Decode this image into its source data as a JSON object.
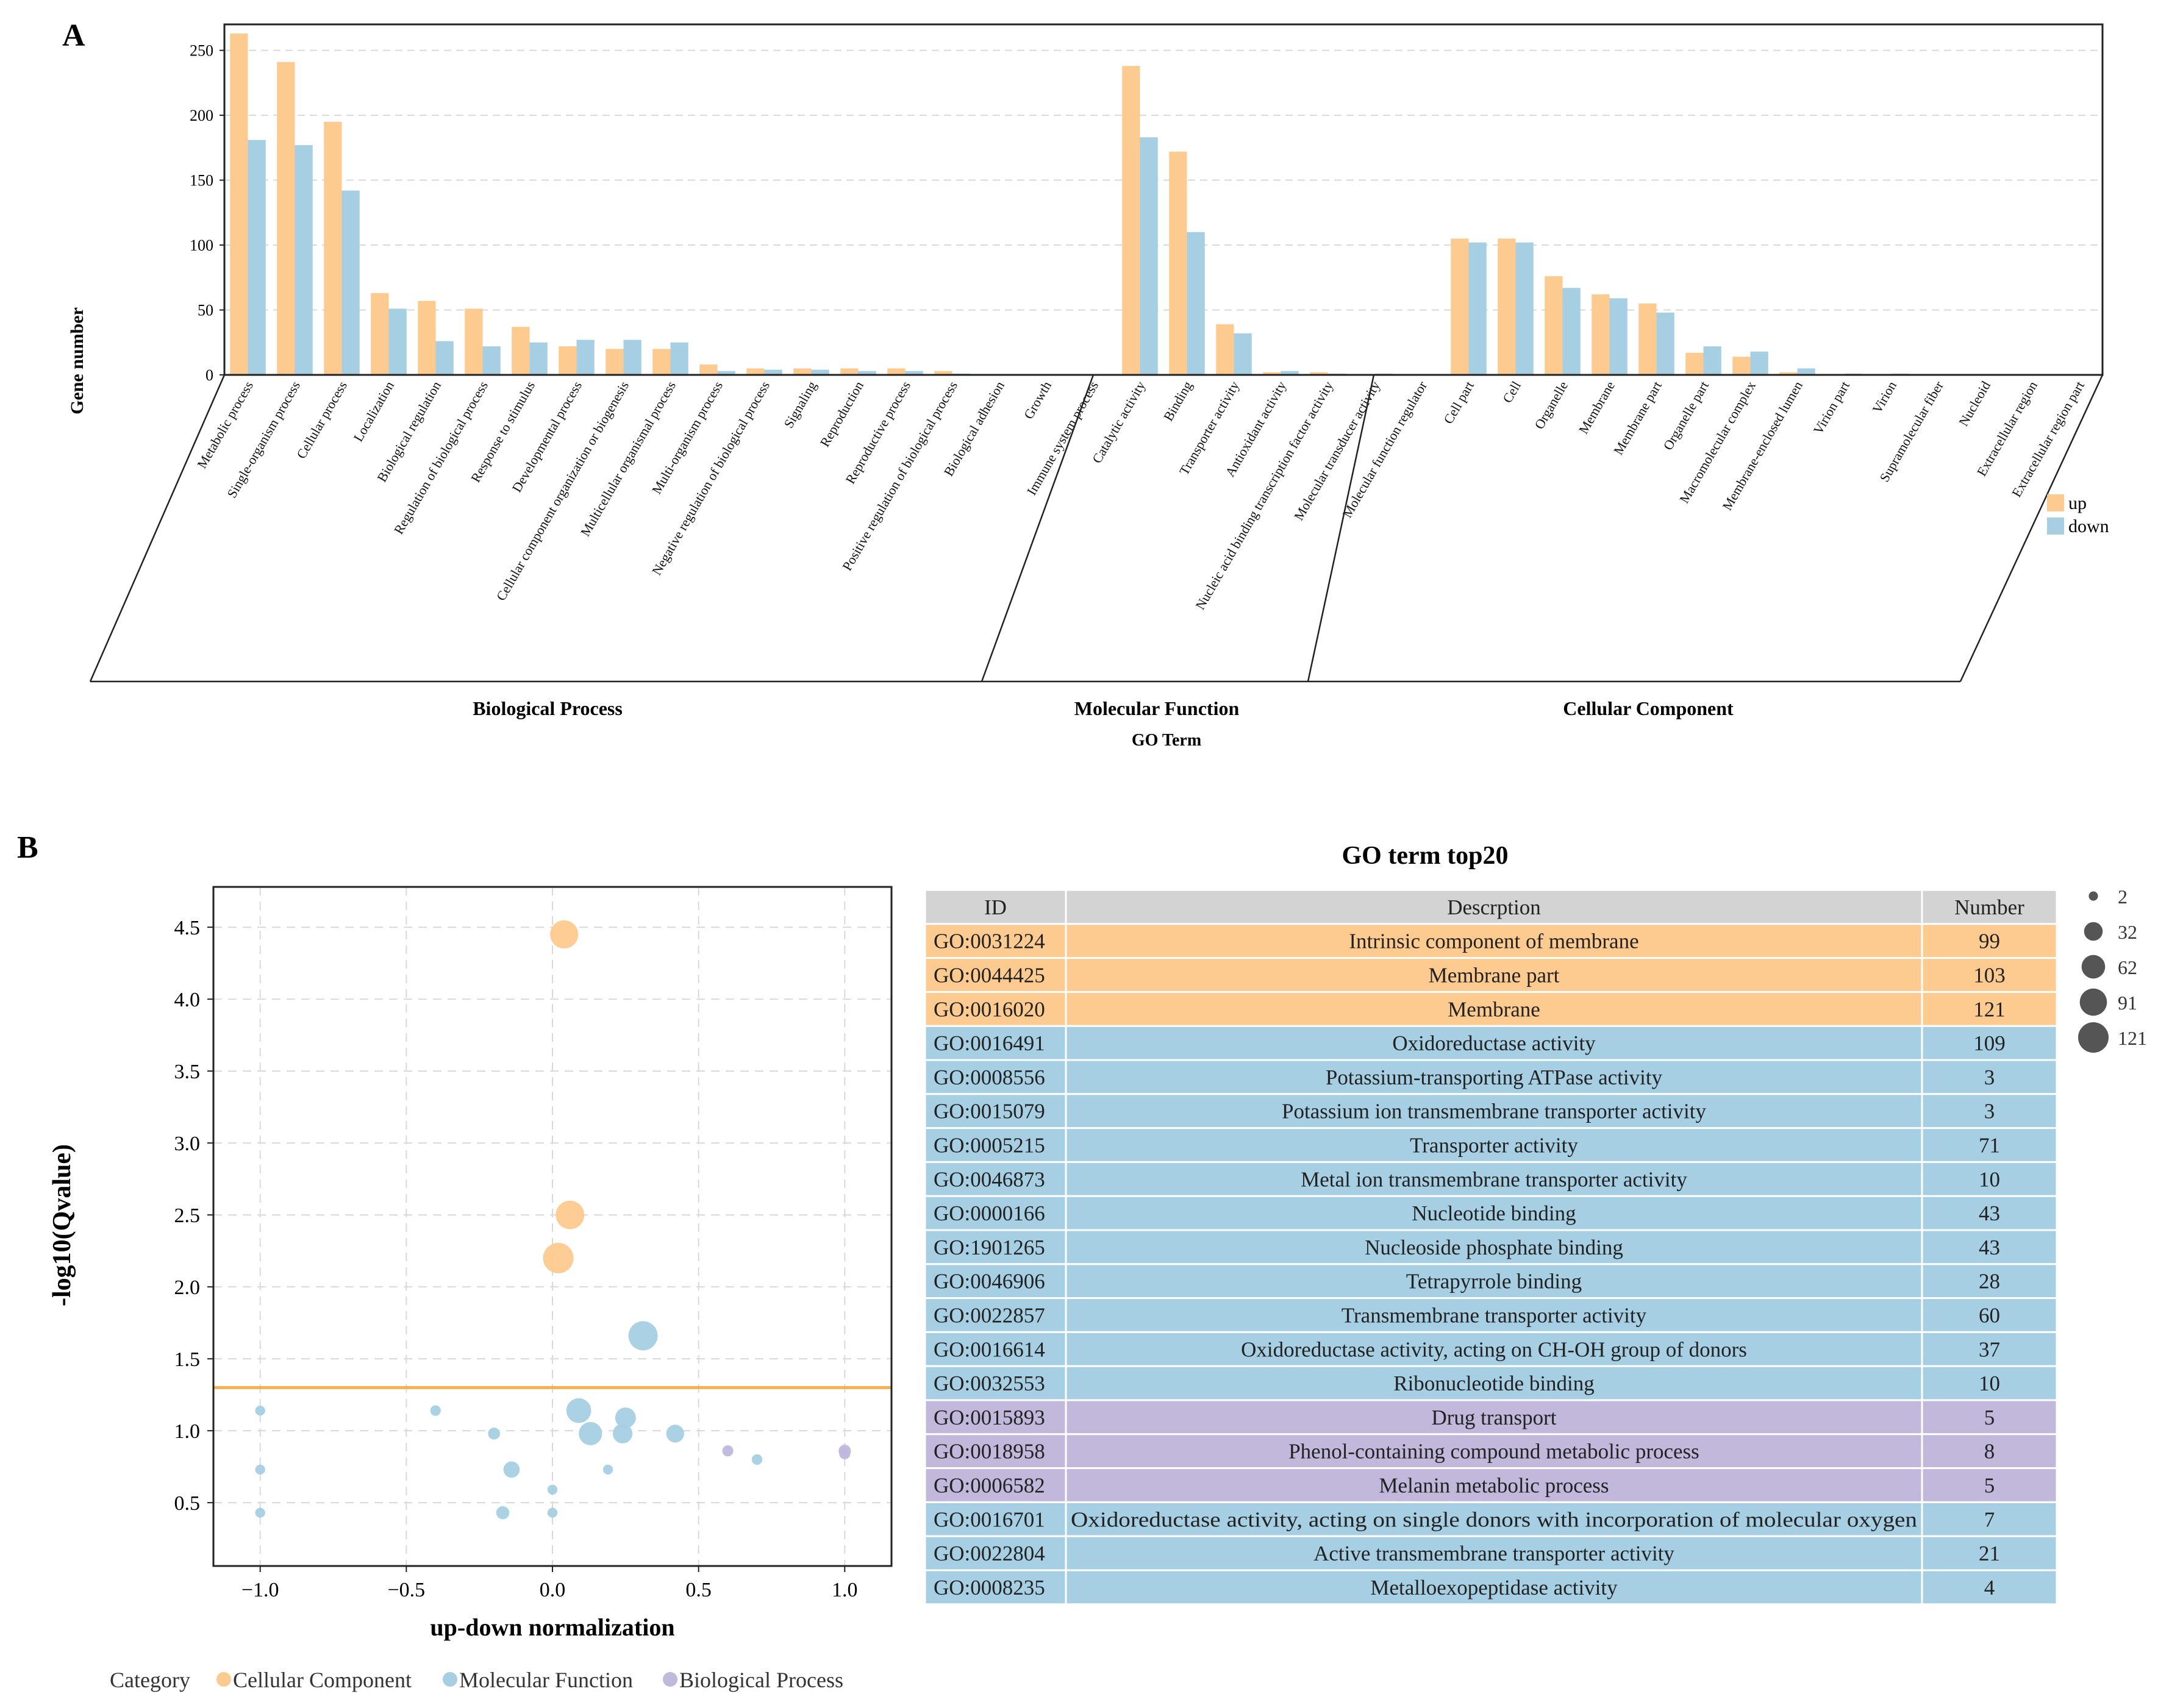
{
  "colors": {
    "up": "#fdca8f",
    "down": "#a7cfe3",
    "cellular_component": "#fdca8f",
    "molecular_function": "#a7cfe3",
    "biological_process": "#c1b8dc",
    "threshold_line": "#f7b04b",
    "header_row": "#d3d3d3",
    "grid": "#d9d9d9"
  },
  "chart_data": [
    {
      "panel": "A",
      "type": "bar",
      "xlabel": "GO Term",
      "ylabel": "Gene number",
      "ylim": [
        0,
        270
      ],
      "yticks": [
        0,
        50,
        100,
        150,
        200,
        250
      ],
      "grid": true,
      "legend": [
        {
          "name": "up",
          "color_key": "up"
        },
        {
          "name": "down",
          "color_key": "down"
        }
      ],
      "legend_placement": "right",
      "groups": [
        {
          "name": "Biological Process",
          "categories": [
            "Metabolic process",
            "Single-organism process",
            "Cellular process",
            "Localization",
            "Biological regulation",
            "Regulation of biological process",
            "Response to stimulus",
            "Developmental process",
            "Cellular component organization or biogenesis",
            "Multicellular organismal process",
            "Multi-organism process",
            "Negative regulation of biological process",
            "Signaling",
            "Reproduction",
            "Reproductive process",
            "Positive regulation of biological process",
            "Biological adhesion",
            "Growth",
            "Immune system process"
          ],
          "series": [
            {
              "name": "up",
              "values": [
                263,
                241,
                195,
                63,
                57,
                51,
                37,
                22,
                20,
                20,
                8,
                5,
                5,
                5,
                5,
                3,
                0.5,
                0.5,
                0.5
              ]
            },
            {
              "name": "down",
              "values": [
                181,
                177,
                142,
                51,
                26,
                22,
                25,
                27,
                27,
                25,
                3,
                4,
                4,
                3,
                3,
                1,
                0.3,
                0.3,
                0.3
              ]
            }
          ]
        },
        {
          "name": "Molecular Function",
          "categories": [
            "Catalytic activity",
            "Binding",
            "Transporter activity",
            "Antioxidant activity",
            "Nucleic acid binding transcription factor activity",
            "Molecular transducer activity",
            "Molecular function regulator"
          ],
          "series": [
            {
              "name": "up",
              "values": [
                238,
                172,
                39,
                2,
                2,
                0.5,
                0.5
              ]
            },
            {
              "name": "down",
              "values": [
                183,
                110,
                32,
                3,
                1,
                1,
                0.5
              ]
            }
          ]
        },
        {
          "name": "Cellular Component",
          "categories": [
            "Cell part",
            "Cell",
            "Organelle",
            "Membrane",
            "Membrane part",
            "Organelle part",
            "Macromolecular complex",
            "Membrane-enclosed lumen",
            "Virion part",
            "Virion",
            "Supramolecular fiber",
            "Nucleoid",
            "Extracellular region",
            "Extracellular region part"
          ],
          "series": [
            {
              "name": "up",
              "values": [
                105,
                105,
                76,
                62,
                55,
                17,
                14,
                2,
                0.5,
                0.5,
                0.5,
                0.3,
                0.3,
                0.3
              ]
            },
            {
              "name": "down",
              "values": [
                102,
                102,
                67,
                59,
                48,
                22,
                18,
                5,
                1,
                1,
                0.5,
                0.3,
                0.3,
                0.3
              ]
            }
          ]
        }
      ]
    },
    {
      "panel": "B",
      "type": "scatter",
      "xlabel": "up-down normalization",
      "ylabel": "-log10(Qvalue)",
      "xlim": [
        -1.16,
        1.16
      ],
      "ylim": [
        0.06,
        4.78
      ],
      "xticks": [
        -1.0,
        -0.5,
        0.0,
        0.5,
        1.0
      ],
      "xtick_labels": [
        "−1.0",
        "−0.5",
        "0.0",
        "0.5",
        "1.0"
      ],
      "yticks": [
        0.5,
        1.0,
        1.5,
        2.0,
        2.5,
        3.0,
        3.5,
        4.0,
        4.5
      ],
      "ytick_labels": [
        "0.5",
        "1.0",
        "1.5",
        "2.0",
        "2.5",
        "3.0",
        "3.5",
        "4.0",
        "4.5"
      ],
      "threshold_y": 1.3,
      "grid": true,
      "size_legend": {
        "values": [
          2,
          32,
          62,
          91,
          121
        ],
        "labels": [
          "2",
          "32",
          "62",
          "91",
          "121"
        ]
      },
      "category_legend": {
        "title": "Category",
        "items": [
          {
            "name": "Cellular Component",
            "color_key": "cellular_component"
          },
          {
            "name": "Molecular Function",
            "color_key": "molecular_function"
          },
          {
            "name": "Biological Process",
            "color_key": "biological_process"
          }
        ]
      },
      "points": [
        {
          "x": 0.04,
          "y": 4.45,
          "size": 99,
          "category": "cellular_component"
        },
        {
          "x": 0.06,
          "y": 2.5,
          "size": 103,
          "category": "cellular_component"
        },
        {
          "x": 0.02,
          "y": 2.2,
          "size": 121,
          "category": "cellular_component"
        },
        {
          "x": 0.31,
          "y": 1.66,
          "size": 109,
          "category": "molecular_function"
        },
        {
          "x": 0.09,
          "y": 1.14,
          "size": 71,
          "category": "molecular_function"
        },
        {
          "x": 0.25,
          "y": 1.09,
          "size": 43,
          "category": "molecular_function"
        },
        {
          "x": 0.13,
          "y": 0.98,
          "size": 60,
          "category": "molecular_function"
        },
        {
          "x": 0.24,
          "y": 0.98,
          "size": 37,
          "category": "molecular_function"
        },
        {
          "x": 0.42,
          "y": 0.98,
          "size": 28,
          "category": "molecular_function"
        },
        {
          "x": -0.14,
          "y": 0.73,
          "size": 21,
          "category": "molecular_function"
        },
        {
          "x": -1.0,
          "y": 1.14,
          "size": 3,
          "category": "molecular_function"
        },
        {
          "x": -0.4,
          "y": 1.14,
          "size": 4,
          "category": "molecular_function"
        },
        {
          "x": -0.2,
          "y": 0.98,
          "size": 7,
          "category": "molecular_function"
        },
        {
          "x": -1.0,
          "y": 0.73,
          "size": 3,
          "category": "molecular_function"
        },
        {
          "x": 0.19,
          "y": 0.73,
          "size": 3,
          "category": "molecular_function"
        },
        {
          "x": 0.0,
          "y": 0.59,
          "size": 3,
          "category": "molecular_function"
        },
        {
          "x": -0.17,
          "y": 0.43,
          "size": 10,
          "category": "molecular_function"
        },
        {
          "x": -1.0,
          "y": 0.43,
          "size": 3,
          "category": "molecular_function"
        },
        {
          "x": 0.0,
          "y": 0.43,
          "size": 3,
          "category": "molecular_function"
        },
        {
          "x": 0.7,
          "y": 0.8,
          "size": 4,
          "category": "molecular_function"
        },
        {
          "x": 0.6,
          "y": 0.86,
          "size": 5,
          "category": "biological_process"
        },
        {
          "x": 1.0,
          "y": 0.86,
          "size": 8,
          "category": "biological_process"
        },
        {
          "x": 1.0,
          "y": 0.84,
          "size": 5,
          "category": "biological_process"
        }
      ]
    },
    {
      "panel": "B-table",
      "type": "table",
      "title": "GO term top20",
      "columns": [
        "ID",
        "Descrption",
        "Number"
      ],
      "rows": [
        {
          "id": "GO:0031224",
          "description": "Intrinsic component of membrane",
          "number": "99",
          "category": "cellular_component"
        },
        {
          "id": "GO:0044425",
          "description": "Membrane part",
          "number": "103",
          "category": "cellular_component"
        },
        {
          "id": "GO:0016020",
          "description": "Membrane",
          "number": "121",
          "category": "cellular_component"
        },
        {
          "id": "GO:0016491",
          "description": "Oxidoreductase activity",
          "number": "109",
          "category": "molecular_function"
        },
        {
          "id": "GO:0008556",
          "description": "Potassium-transporting ATPase activity",
          "number": "3",
          "category": "molecular_function"
        },
        {
          "id": "GO:0015079",
          "description": "Potassium ion transmembrane transporter activity",
          "number": "3",
          "category": "molecular_function"
        },
        {
          "id": "GO:0005215",
          "description": "Transporter activity",
          "number": "71",
          "category": "molecular_function"
        },
        {
          "id": "GO:0046873",
          "description": "Metal ion transmembrane transporter activity",
          "number": "10",
          "category": "molecular_function"
        },
        {
          "id": "GO:0000166",
          "description": "Nucleotide binding",
          "number": "43",
          "category": "molecular_function"
        },
        {
          "id": "GO:1901265",
          "description": "Nucleoside phosphate binding",
          "number": "43",
          "category": "molecular_function"
        },
        {
          "id": "GO:0046906",
          "description": "Tetrapyrrole binding",
          "number": "28",
          "category": "molecular_function"
        },
        {
          "id": "GO:0022857",
          "description": "Transmembrane transporter activity",
          "number": "60",
          "category": "molecular_function"
        },
        {
          "id": "GO:0016614",
          "description": "Oxidoreductase activity, acting on CH-OH group of donors",
          "number": "37",
          "category": "molecular_function"
        },
        {
          "id": "GO:0032553",
          "description": "Ribonucleotide binding",
          "number": "10",
          "category": "molecular_function"
        },
        {
          "id": "GO:0015893",
          "description": "Drug transport",
          "number": "5",
          "category": "biological_process"
        },
        {
          "id": "GO:0018958",
          "description": "Phenol-containing compound metabolic process",
          "number": "8",
          "category": "biological_process"
        },
        {
          "id": "GO:0006582",
          "description": "Melanin metabolic process",
          "number": "5",
          "category": "biological_process"
        },
        {
          "id": "GO:0016701",
          "description": "Oxidoreductase activity, acting on single donors with incorporation of molecular oxygen",
          "number": "7",
          "category": "molecular_function"
        },
        {
          "id": "GO:0022804",
          "description": "Active transmembrane transporter activity",
          "number": "21",
          "category": "molecular_function"
        },
        {
          "id": "GO:0008235",
          "description": "Metalloexopeptidase activity",
          "number": "4",
          "category": "molecular_function"
        }
      ]
    }
  ],
  "labels": {
    "panel_a": "A",
    "panel_b": "B"
  }
}
